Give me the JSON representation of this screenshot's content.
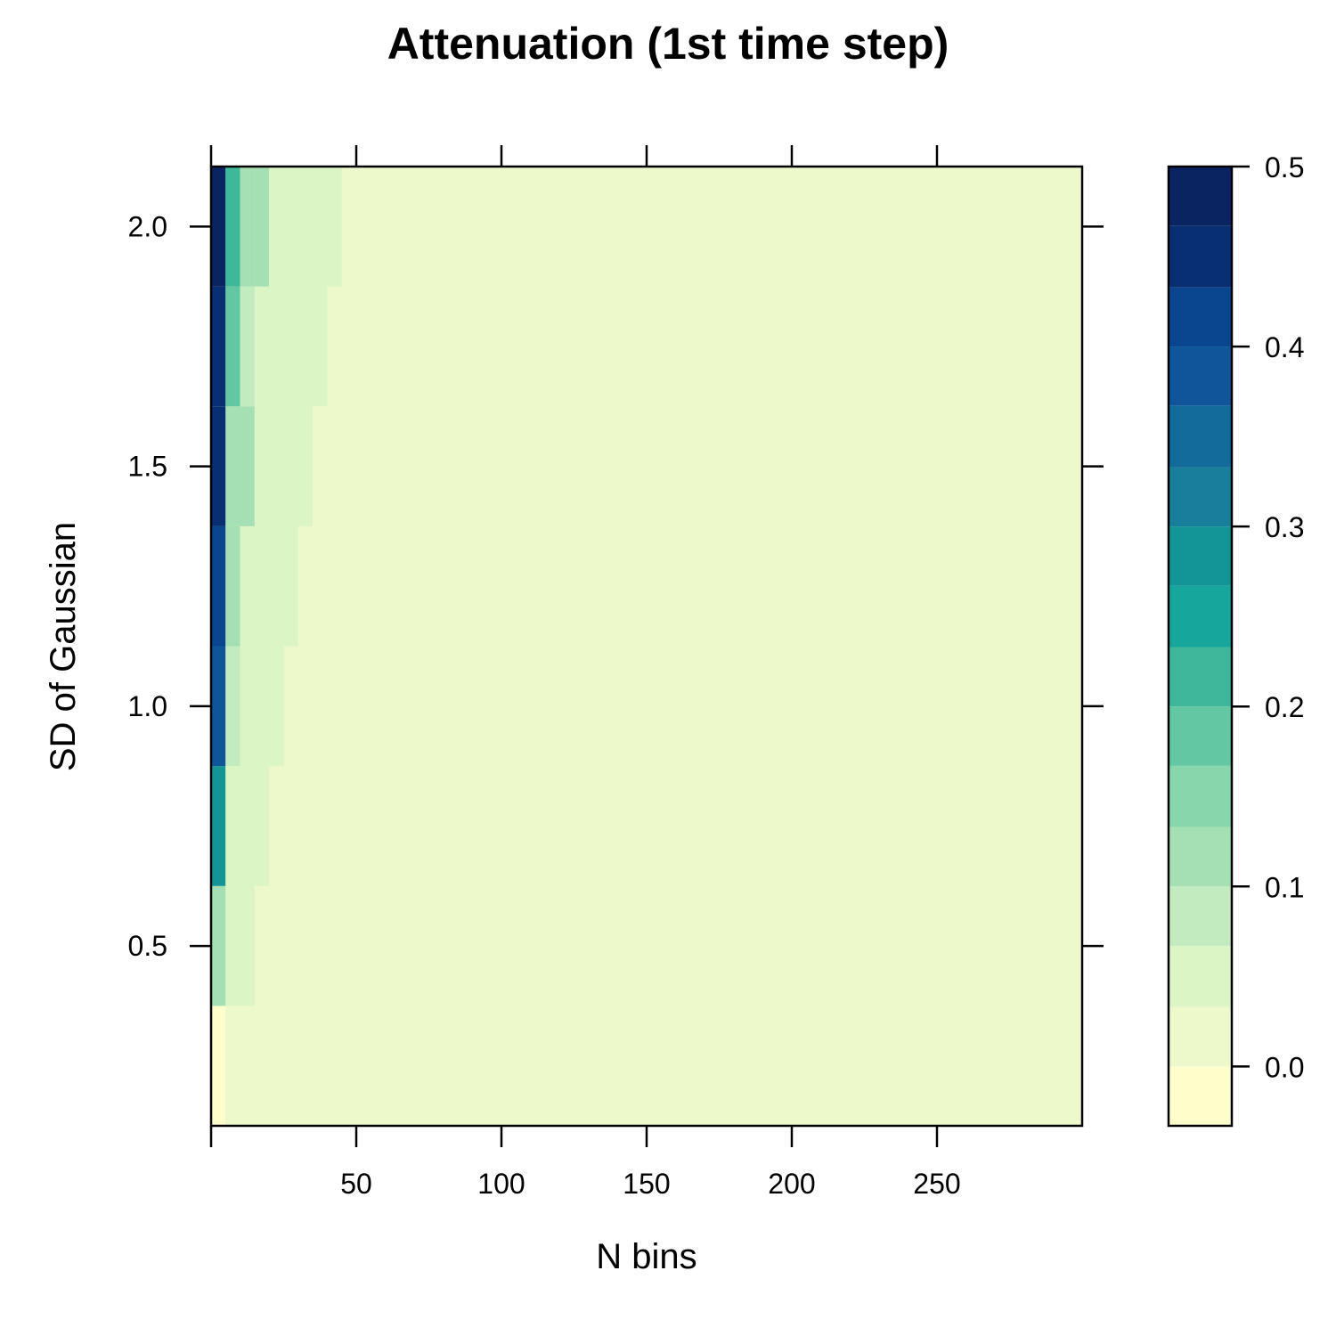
{
  "chart_data": {
    "type": "heatmap",
    "title": "Attenuation (1st time step)",
    "xlabel": "N bins",
    "ylabel": "SD of Gaussian",
    "xlim": [
      0,
      300
    ],
    "ylim": [
      0.125,
      2.125
    ],
    "x_ticks": [
      50,
      100,
      150,
      200,
      250
    ],
    "x_tick_labels": [
      "50",
      "100",
      "150",
      "200",
      "250"
    ],
    "y_ticks": [
      0.5,
      1.0,
      1.5,
      2.0
    ],
    "y_tick_labels": [
      "0.5",
      "1.0",
      "1.5",
      "2.0"
    ],
    "background_value": 0.01,
    "rows": [
      {
        "sd_range": [
          0.125,
          0.375
        ],
        "cells": [
          {
            "x": [
              0,
              5
            ],
            "value": -0.02
          },
          {
            "x": [
              5,
              10
            ],
            "value": 0.03
          }
        ]
      },
      {
        "sd_range": [
          0.375,
          0.625
        ],
        "cells": [
          {
            "x": [
              0,
              5
            ],
            "value": 0.12
          },
          {
            "x": [
              5,
              15
            ],
            "value": 0.05
          }
        ]
      },
      {
        "sd_range": [
          0.625,
          0.875
        ],
        "cells": [
          {
            "x": [
              0,
              5
            ],
            "value": 0.27
          },
          {
            "x": [
              5,
              20
            ],
            "value": 0.05
          }
        ]
      },
      {
        "sd_range": [
          0.875,
          1.125
        ],
        "cells": [
          {
            "x": [
              0,
              5
            ],
            "value": 0.38
          },
          {
            "x": [
              5,
              10
            ],
            "value": 0.07
          },
          {
            "x": [
              10,
              25
            ],
            "value": 0.05
          }
        ]
      },
      {
        "sd_range": [
          1.125,
          1.375
        ],
        "cells": [
          {
            "x": [
              0,
              5
            ],
            "value": 0.42
          },
          {
            "x": [
              5,
              10
            ],
            "value": 0.1
          },
          {
            "x": [
              10,
              30
            ],
            "value": 0.05
          }
        ]
      },
      {
        "sd_range": [
          1.375,
          1.625
        ],
        "cells": [
          {
            "x": [
              0,
              5
            ],
            "value": 0.45
          },
          {
            "x": [
              5,
              15
            ],
            "value": 0.12
          },
          {
            "x": [
              15,
              35
            ],
            "value": 0.05
          }
        ]
      },
      {
        "sd_range": [
          1.625,
          1.875
        ],
        "cells": [
          {
            "x": [
              0,
              5
            ],
            "value": 0.45
          },
          {
            "x": [
              5,
              10
            ],
            "value": 0.18
          },
          {
            "x": [
              10,
              15
            ],
            "value": 0.07
          },
          {
            "x": [
              15,
              40
            ],
            "value": 0.05
          }
        ]
      },
      {
        "sd_range": [
          1.875,
          2.125
        ],
        "cells": [
          {
            "x": [
              0,
              5
            ],
            "value": 0.49
          },
          {
            "x": [
              5,
              10
            ],
            "value": 0.23
          },
          {
            "x": [
              10,
              15
            ],
            "value": 0.12
          },
          {
            "x": [
              15,
              20
            ],
            "value": 0.1
          },
          {
            "x": [
              20,
              45
            ],
            "value": 0.05
          }
        ]
      }
    ],
    "colorbar": {
      "breaks": [
        -0.033,
        0.0,
        0.033,
        0.067,
        0.1,
        0.133,
        0.167,
        0.2,
        0.233,
        0.267,
        0.3,
        0.333,
        0.367,
        0.4,
        0.433,
        0.467,
        0.5
      ],
      "colors": [
        "#ffffcc",
        "#edf8cb",
        "#dcf5c5",
        "#c2ebc0",
        "#a5e0b4",
        "#87d6ac",
        "#63c7a3",
        "#3eb89b",
        "#17a69c",
        "#139495",
        "#197e99",
        "#136b9c",
        "#0e5699",
        "#0a4590",
        "#072f72",
        "#0a2462",
        "#1b1249"
      ],
      "ticks": [
        0.0,
        0.1,
        0.2,
        0.3,
        0.4,
        0.5
      ],
      "tick_labels": [
        "0.0",
        "0.1",
        "0.2",
        "0.3",
        "0.4",
        "0.5"
      ]
    },
    "legend": "right",
    "grid": false
  }
}
